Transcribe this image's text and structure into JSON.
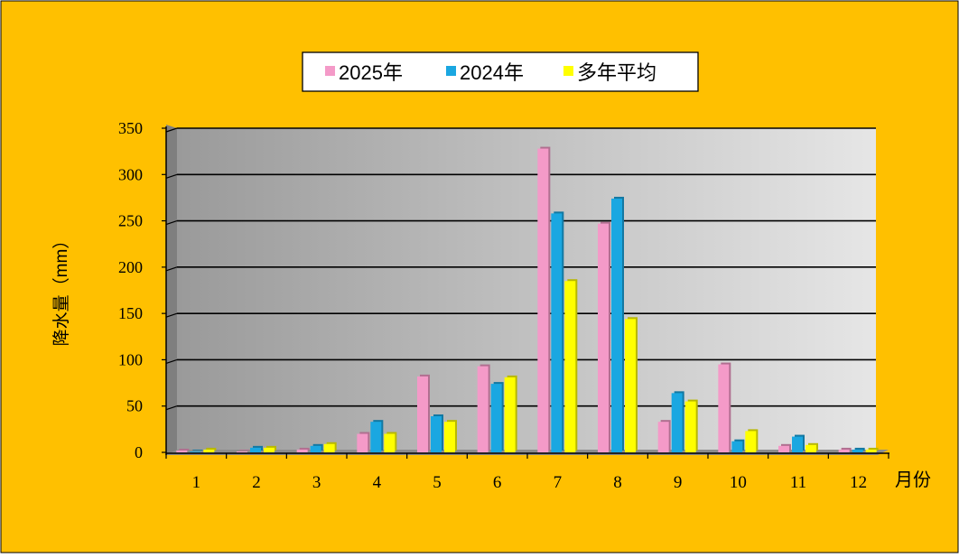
{
  "chart_data": {
    "type": "bar",
    "categories": [
      "1",
      "2",
      "3",
      "4",
      "5",
      "6",
      "7",
      "8",
      "9",
      "10",
      "11",
      "12"
    ],
    "series": [
      {
        "name": "2025年",
        "color": "#F49AC8",
        "values": [
          2,
          1,
          3,
          20,
          82,
          93,
          328,
          247,
          33,
          95,
          7,
          3
        ]
      },
      {
        "name": "2024年",
        "color": "#1AA7E1",
        "values": [
          1,
          5,
          7,
          33,
          39,
          74,
          258,
          274,
          64,
          12,
          17,
          3
        ]
      },
      {
        "name": "多年平均",
        "color": "#FFFF00",
        "values": [
          3,
          5,
          9,
          20,
          33,
          81,
          185,
          144,
          55,
          23,
          8,
          3
        ]
      }
    ],
    "xlabel": "月份",
    "ylabel": "降水量（mm）",
    "ylim": [
      0,
      350
    ],
    "yticks": [
      "0",
      "50",
      "100",
      "150",
      "200",
      "250",
      "300",
      "350"
    ],
    "grid": true,
    "legend": "top-center",
    "background": "#FFC000",
    "plot_background": "#BFBFBF"
  }
}
